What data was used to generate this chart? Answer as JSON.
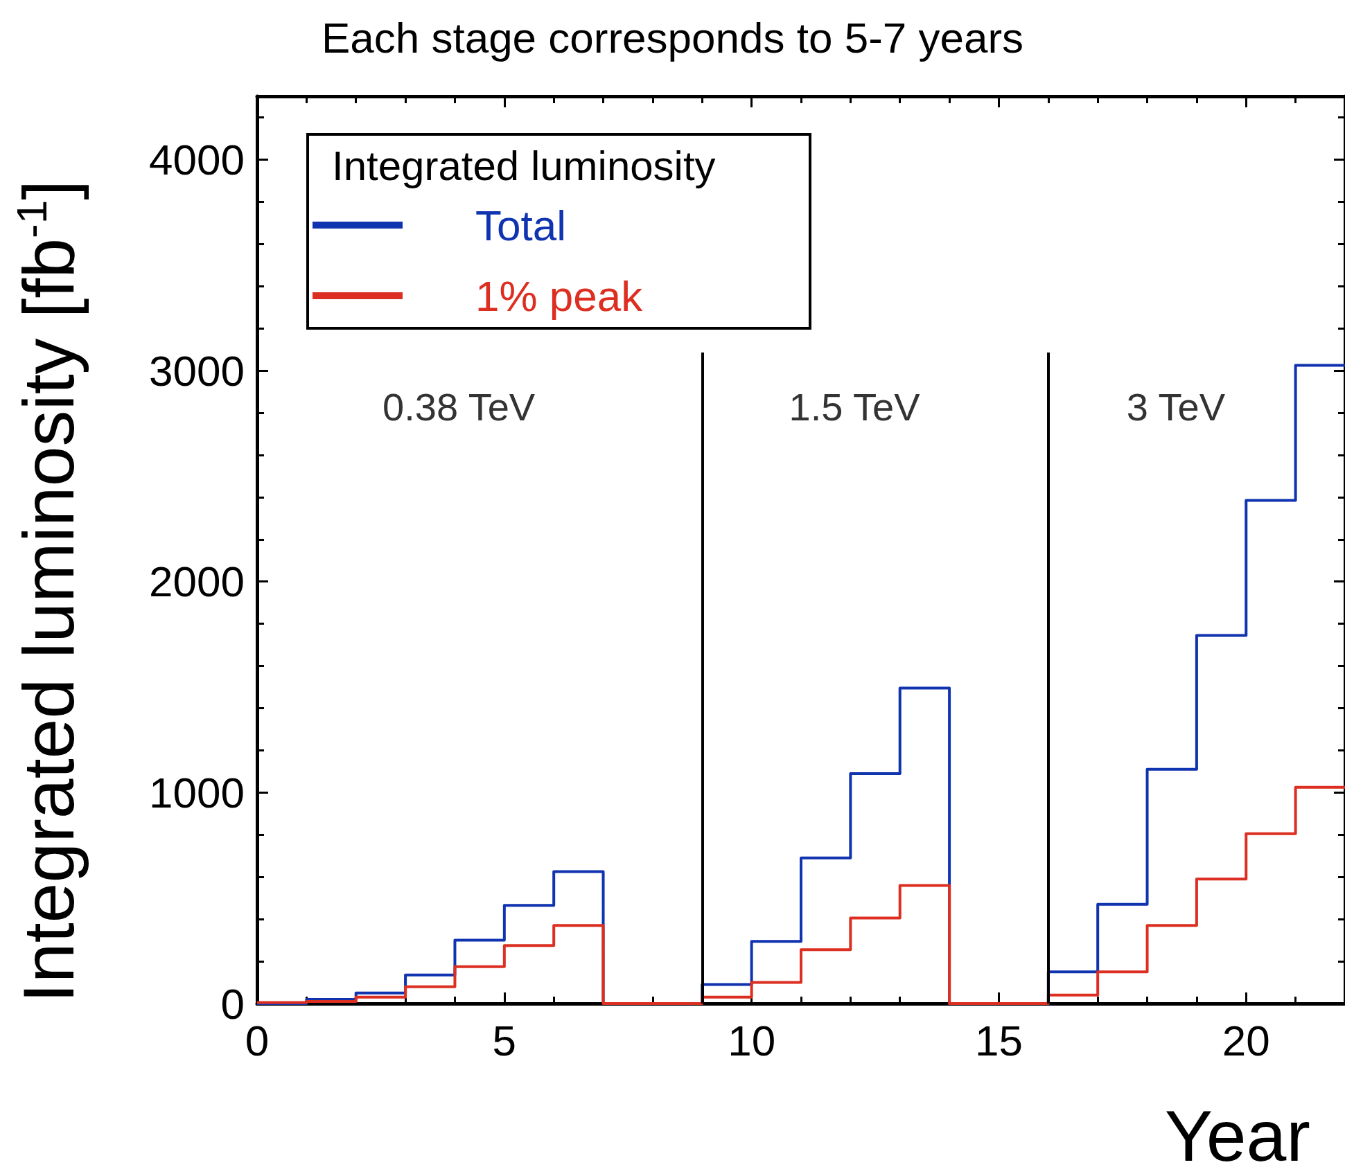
{
  "chart_data": {
    "type": "step",
    "title": "Each stage corresponds to 5-7 years",
    "xlabel": "Year",
    "ylabel": "Integrated luminosity [fb$^{-1}$]",
    "legend_title": "Integrated luminosity",
    "legend": "top left",
    "x": [
      0,
      1,
      2,
      3,
      4,
      5,
      6,
      7,
      8,
      9,
      10,
      11,
      12,
      13,
      14,
      15,
      16,
      17,
      18,
      19,
      20,
      21,
      22
    ],
    "series": [
      {
        "name": "Total",
        "color": "#1033b0",
        "values": [
          0,
          20,
          50,
          135,
          300,
          465,
          625,
          0,
          0,
          90,
          295,
          690,
          1090,
          1495,
          0,
          0,
          150,
          470,
          1110,
          1745,
          2385,
          3025,
          3025
        ]
      },
      {
        "name": "1% peak",
        "color": "#dc2f22",
        "values": [
          5,
          10,
          30,
          80,
          175,
          275,
          370,
          0,
          0,
          30,
          100,
          255,
          405,
          560,
          0,
          0,
          40,
          150,
          370,
          590,
          805,
          1025,
          1025
        ]
      }
    ],
    "xlim": [
      0,
      22
    ],
    "xticks": [
      0,
      5,
      10,
      15,
      20
    ],
    "ylim": [
      0,
      4300
    ],
    "yticks": [
      0,
      1000,
      2000,
      3000,
      4000
    ],
    "ref_lines": [
      {
        "axis": "x",
        "value": 9,
        "color": "#000000"
      },
      {
        "axis": "x",
        "value": 16,
        "color": "#000000"
      }
    ],
    "annotations": [
      "0.38 TeV",
      "1.5 TeV",
      "3 TeV"
    ],
    "grid": false,
    "line_style": "solid",
    "marker": "none"
  }
}
